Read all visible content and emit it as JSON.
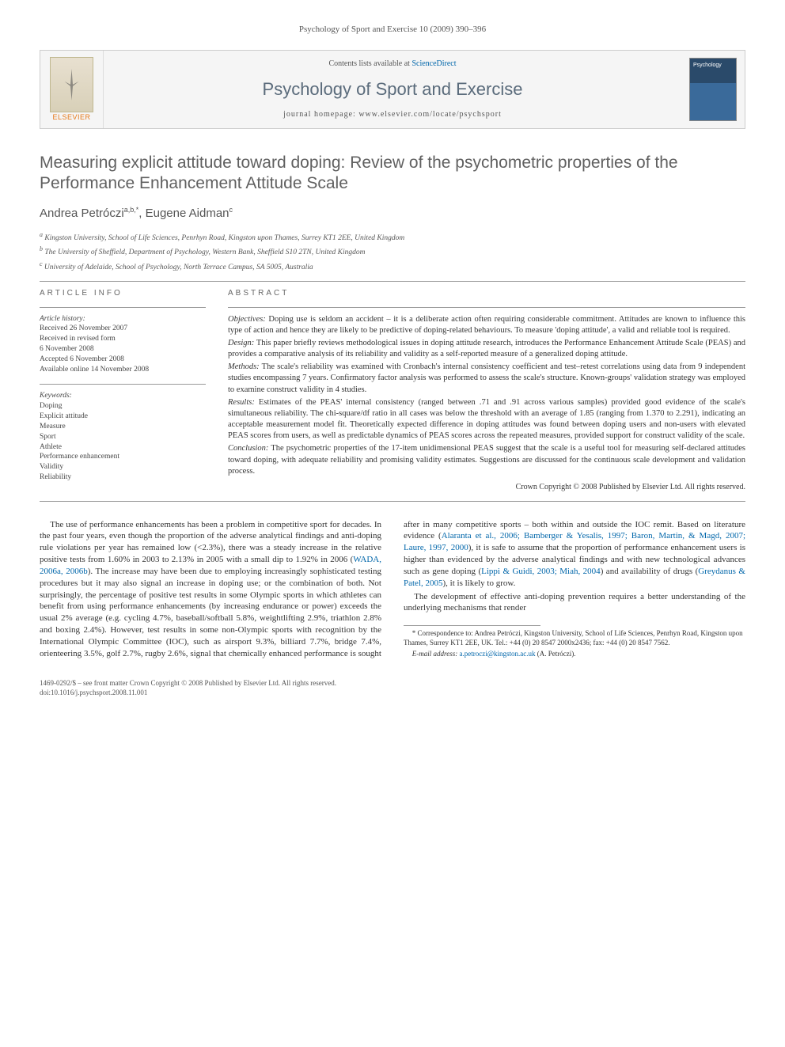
{
  "header": {
    "citation": "Psychology of Sport and Exercise 10 (2009) 390–396"
  },
  "banner": {
    "publisher_label": "ELSEVIER",
    "contents_prefix": "Contents lists available at ",
    "contents_link": "ScienceDirect",
    "journal_name": "Psychology of Sport and Exercise",
    "homepage_prefix": "journal homepage: ",
    "homepage_url": "www.elsevier.com/locate/psychsport"
  },
  "article": {
    "title": "Measuring explicit attitude toward doping: Review of the psychometric properties of the Performance Enhancement Attitude Scale",
    "authors_html": "Andrea Petróczi <sup>a,b,</sup>*, Eugene Aidman <sup>c</sup>",
    "authors": [
      {
        "name": "Andrea Petróczi",
        "marks": "a,b,*"
      },
      {
        "name": "Eugene Aidman",
        "marks": "c"
      }
    ],
    "affiliations": [
      {
        "mark": "a",
        "text": "Kingston University, School of Life Sciences, Penrhyn Road, Kingston upon Thames, Surrey KT1 2EE, United Kingdom"
      },
      {
        "mark": "b",
        "text": "The University of Sheffield, Department of Psychology, Western Bank, Sheffield S10 2TN, United Kingdom"
      },
      {
        "mark": "c",
        "text": "University of Adelaide, School of Psychology, North Terrace Campus, SA 5005, Australia"
      }
    ]
  },
  "meta": {
    "info_heading": "ARTICLE INFO",
    "history_label": "Article history:",
    "history": [
      "Received 26 November 2007",
      "Received in revised form",
      "6 November 2008",
      "Accepted 6 November 2008",
      "Available online 14 November 2008"
    ],
    "keywords_label": "Keywords:",
    "keywords": [
      "Doping",
      "Explicit attitude",
      "Measure",
      "Sport",
      "Athlete",
      "Performance enhancement",
      "Validity",
      "Reliability"
    ]
  },
  "abstract": {
    "heading": "ABSTRACT",
    "sections": [
      {
        "label": "Objectives:",
        "text": " Doping use is seldom an accident – it is a deliberate action often requiring considerable commitment. Attitudes are known to influence this type of action and hence they are likely to be predictive of doping-related behaviours. To measure 'doping attitude', a valid and reliable tool is required."
      },
      {
        "label": "Design:",
        "text": " This paper briefly reviews methodological issues in doping attitude research, introduces the Performance Enhancement Attitude Scale (PEAS) and provides a comparative analysis of its reliability and validity as a self-reported measure of a generalized doping attitude."
      },
      {
        "label": "Methods:",
        "text": " The scale's reliability was examined with Cronbach's internal consistency coefficient and test–retest correlations using data from 9 independent studies encompassing 7 years. Confirmatory factor analysis was performed to assess the scale's structure. Known-groups' validation strategy was employed to examine construct validity in 4 studies."
      },
      {
        "label": "Results:",
        "text": " Estimates of the PEAS' internal consistency (ranged between .71 and .91 across various samples) provided good evidence of the scale's simultaneous reliability. The chi-square/df ratio in all cases was below the threshold with an average of 1.85 (ranging from 1.370 to 2.291), indicating an acceptable measurement model fit. Theoretically expected difference in doping attitudes was found between doping users and non-users with elevated PEAS scores from users, as well as predictable dynamics of PEAS scores across the repeated measures, provided support for construct validity of the scale."
      },
      {
        "label": "Conclusion:",
        "text": " The psychometric properties of the 17-item unidimensional PEAS suggest that the scale is a useful tool for measuring self-declared attitudes toward doping, with adequate reliability and promising validity estimates. Suggestions are discussed for the continuous scale development and validation process."
      }
    ],
    "copyright": "Crown Copyright © 2008 Published by Elsevier Ltd. All rights reserved."
  },
  "body": {
    "p1a": "The use of performance enhancements has been a problem in competitive sport for decades. In the past four years, even though the proportion of the adverse analytical findings and anti-doping rule violations per year has remained low (<2.3%), there was a steady increase in the relative positive tests from 1.60% in 2003 to 2.13% in 2005 with a small dip to 1.92% in 2006 (",
    "c1": "WADA, 2006a, 2006b",
    "p1b": "). The increase may have been due to employing increasingly sophisticated testing procedures but it may also signal an increase in doping use; or the combination of both. Not surprisingly, the percentage of positive test results in some Olympic sports in which athletes can benefit from using performance enhancements (by increasing endurance or power) exceeds the usual 2% average (e.g. cycling 4.7%, baseball/softball 5.8%, weightlifting 2.9%, triathlon 2.8% and boxing 2.4%). However, test results in some non-Olympic sports with recognition by the International Olympic Committee (IOC), such as airsport 9.3%, billiard 7.7%, bridge 7.4%, orienteering 3.5%, golf 2.7%, rugby 2.6%, signal that chemically enhanced performance is sought after in many competitive sports – both within and outside the IOC remit. Based on literature evidence (",
    "c2": "Alaranta et al., 2006; Bamberger & Yesalis, 1997; Baron, Martin, & Magd, 2007; Laure, 1997, 2000",
    "p1c": "), it is safe to assume that the proportion of performance enhancement users is higher than evidenced by the adverse analytical findings and with new technological advances such as gene doping (",
    "c3": "Lippi & Guidi, 2003; Miah, 2004",
    "p1d": ") and availability of drugs (",
    "c4": "Greydanus & Patel, 2005",
    "p1e": "), it is likely to grow.",
    "p2": "The development of effective anti-doping prevention requires a better understanding of the underlying mechanisms that render"
  },
  "footnote": {
    "corr": "* Correspondence to: Andrea Petróczi, Kingston University, School of Life Sciences, Penrhyn Road, Kingston upon Thames, Surrey KT1 2EE, UK. Tel.: +44 (0) 20 8547 2000x2436; fax: +44 (0) 20 8547 7562.",
    "email_label": "E-mail address: ",
    "email": "a.petroczi@kingston.ac.uk",
    "email_suffix": " (A. Petróczi)."
  },
  "footer": {
    "line1": "1469-0292/$ – see front matter Crown Copyright © 2008 Published by Elsevier Ltd. All rights reserved.",
    "line2": "doi:10.1016/j.psychsport.2008.11.001"
  },
  "colors": {
    "link": "#0066aa",
    "publisher": "#e67817",
    "title_gray": "#606060",
    "banner_title": "#5a6b7b"
  }
}
